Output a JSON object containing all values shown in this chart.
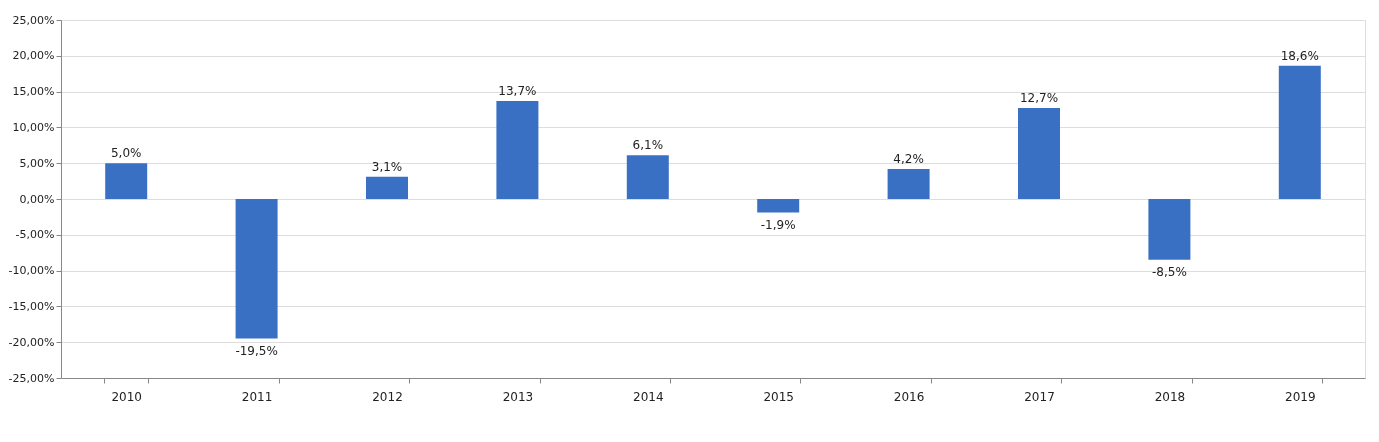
{
  "chart_data": {
    "type": "bar",
    "categories": [
      "2010",
      "2011",
      "2012",
      "2013",
      "2014",
      "2015",
      "2016",
      "2017",
      "2018",
      "2019"
    ],
    "series": [
      {
        "color": "#3a70c4",
        "values": [
          5.0,
          -19.5,
          3.1,
          13.7,
          6.1,
          -1.9,
          4.2,
          12.7,
          -8.5,
          18.6
        ],
        "value_labels": [
          "5,0%",
          "-19,5%",
          "3,1%",
          "13,7%",
          "6,1%",
          "-1,9%",
          "4,2%",
          "12,7%",
          "-8,5%",
          "18,6%"
        ]
      }
    ],
    "ylim": [
      -25,
      25
    ],
    "yticks": [
      {
        "value": -25,
        "label": "-25,00%"
      },
      {
        "value": -20,
        "label": "-20,00%"
      },
      {
        "value": -15,
        "label": "-15,00%"
      },
      {
        "value": -10,
        "label": "-10,00%"
      },
      {
        "value": -5,
        "label": "-5,00%"
      },
      {
        "value": 0,
        "label": "0,00%"
      },
      {
        "value": 5,
        "label": "5,00%"
      },
      {
        "value": 10,
        "label": "10,00%"
      },
      {
        "value": 15,
        "label": "15,00%"
      },
      {
        "value": 20,
        "label": "20,00%"
      },
      {
        "value": 25,
        "label": "25,00%"
      }
    ],
    "grid": "y"
  }
}
